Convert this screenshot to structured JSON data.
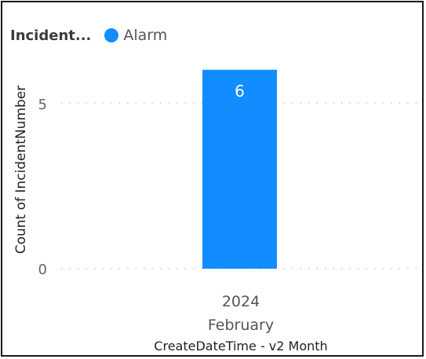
{
  "chart_data": {
    "type": "bar",
    "legend": {
      "title": "Incident...",
      "entries": [
        "Alarm"
      ]
    },
    "categories": [
      [
        "2024",
        "February"
      ]
    ],
    "series": [
      {
        "name": "Alarm",
        "values": [
          6
        ],
        "color": "#118DFF"
      }
    ],
    "data_labels": [
      "6"
    ],
    "ylabel": "Count of IncidentNumber",
    "xlabel": "CreateDateTime - v2 Month",
    "yticks": [
      "0",
      "5"
    ],
    "ylim": [
      0,
      6
    ],
    "grid": true
  }
}
